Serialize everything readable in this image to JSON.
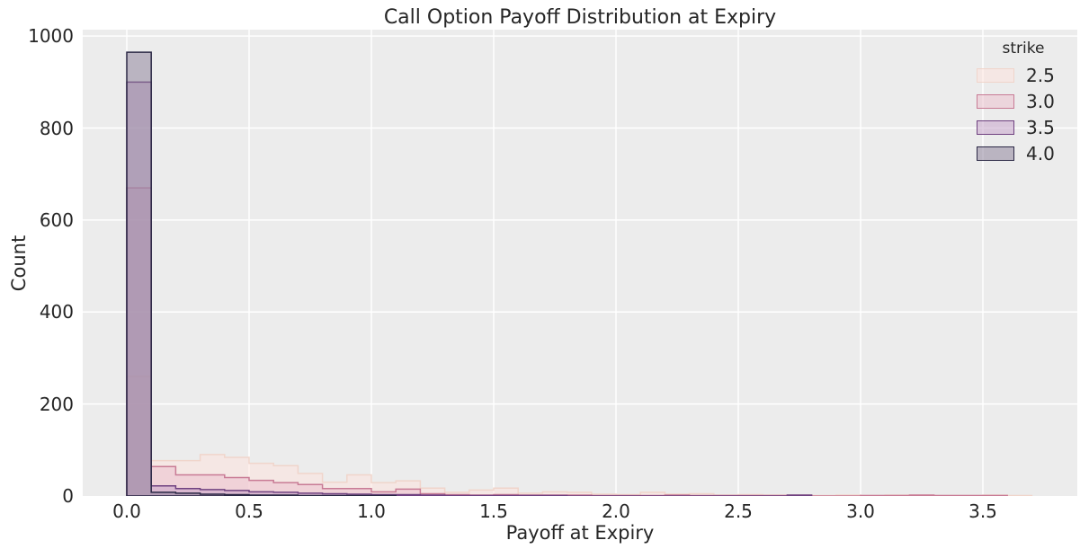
{
  "title": "Call Option Payoff Distribution at Expiry",
  "axes": {
    "xlabel": "Payoff at Expiry",
    "ylabel": "Count"
  },
  "legend": {
    "title": "strike",
    "entries": [
      {
        "label": "2.5",
        "fill": "rgba(254,226,220,0.5)",
        "edge": "#f0d5cb"
      },
      {
        "label": "3.0",
        "fill": "rgba(236,190,204,0.5)",
        "edge": "#c87b95"
      },
      {
        "label": "3.5",
        "fill": "rgba(196,158,200,0.5)",
        "edge": "#6f4180"
      },
      {
        "label": "4.0",
        "fill": "rgba(136,124,150,0.5)",
        "edge": "#2b2845"
      }
    ]
  },
  "chart_data": {
    "type": "histogram",
    "element": "step-layered",
    "title": "Call Option Payoff Distribution at Expiry",
    "xlabel": "Payoff at Expiry",
    "ylabel": "Count",
    "legend_title": "strike",
    "legend_position": "upper right",
    "grid": true,
    "plot_bg": "#ececec",
    "grid_color": "#ffffff",
    "bin_start": 0.0,
    "bin_width": 0.1,
    "xlim": [
      -0.1801,
      3.886
    ],
    "ylim": [
      0,
      1014
    ],
    "x_ticks": [
      {
        "v": 0.0,
        "label": "0.0"
      },
      {
        "v": 0.5,
        "label": "0.5"
      },
      {
        "v": 1.0,
        "label": "1.0"
      },
      {
        "v": 1.5,
        "label": "1.5"
      },
      {
        "v": 2.0,
        "label": "2.0"
      },
      {
        "v": 2.5,
        "label": "2.5"
      },
      {
        "v": 3.0,
        "label": "3.0"
      },
      {
        "v": 3.5,
        "label": "3.5"
      }
    ],
    "y_ticks": [
      {
        "v": 0,
        "label": "0"
      },
      {
        "v": 200,
        "label": "200"
      },
      {
        "v": 400,
        "label": "400"
      },
      {
        "v": 600,
        "label": "600"
      },
      {
        "v": 800,
        "label": "800"
      },
      {
        "v": 1000,
        "label": "1000"
      }
    ],
    "series": [
      {
        "name": "2.5",
        "fill": "rgba(254,226,220,0.5)",
        "edge": "#f0d5cb",
        "counts": [
          260,
          77,
          77,
          90,
          84,
          71,
          66,
          49,
          30,
          46,
          29,
          33,
          17,
          8,
          13,
          17,
          6,
          9,
          8,
          4,
          3,
          8,
          4,
          5,
          2,
          3,
          2,
          2,
          1,
          2,
          1,
          2,
          2,
          1,
          1,
          2,
          1
        ]
      },
      {
        "name": "3.0",
        "fill": "rgba(236,190,204,0.5)",
        "edge": "#c87b95",
        "counts": [
          670,
          64,
          46,
          46,
          40,
          34,
          29,
          25,
          16,
          16,
          9,
          15,
          5,
          3,
          2,
          3,
          2,
          2,
          2,
          1,
          1,
          1,
          2,
          1,
          1,
          1,
          1,
          1,
          0,
          0,
          1,
          1,
          2,
          1,
          1,
          1,
          0
        ]
      },
      {
        "name": "3.5",
        "fill": "rgba(196,158,200,0.5)",
        "edge": "#6f4180",
        "counts": [
          900,
          22,
          16,
          14,
          12,
          9,
          8,
          6,
          5,
          4,
          3,
          3,
          2,
          1,
          1,
          1,
          1,
          1,
          0,
          0,
          0,
          0,
          0,
          0,
          0,
          0,
          0,
          2,
          0,
          0,
          0,
          0,
          0,
          0,
          0,
          0,
          0
        ]
      },
      {
        "name": "4.0",
        "fill": "rgba(136,124,150,0.5)",
        "edge": "#2b2845",
        "counts": [
          965,
          8,
          6,
          4,
          3,
          2,
          2,
          1,
          1,
          1,
          1,
          0,
          0,
          0,
          0,
          0,
          0,
          0,
          0,
          0,
          0,
          0,
          0,
          0,
          0,
          0,
          0,
          0,
          0,
          0,
          0,
          0,
          0,
          0,
          0,
          0,
          0
        ]
      }
    ]
  }
}
